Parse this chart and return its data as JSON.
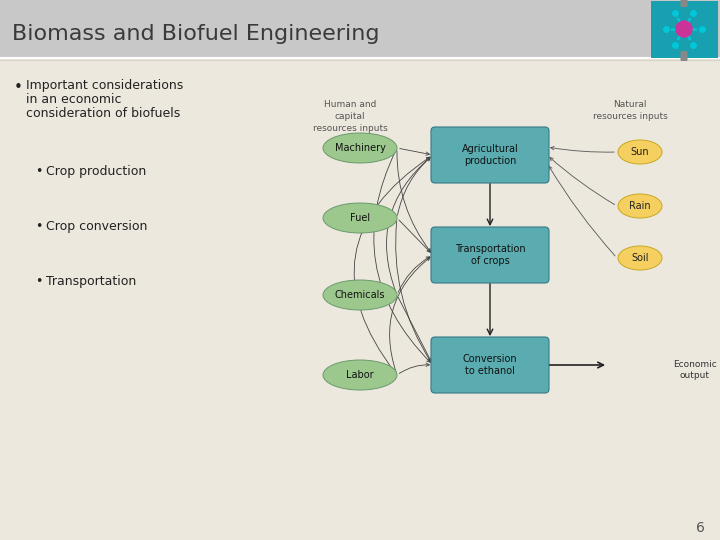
{
  "title": "Biomass and Biofuel Engineering",
  "title_bg": "#c8c8c8",
  "slide_bg": "#ece8de",
  "title_color": "#3a3a3a",
  "bullet1_line1": "Important considerations",
  "bullet1_line2": "in an economic",
  "bullet1_line3": "consideration of biofuels",
  "sub_bullets": [
    "Crop production",
    "Crop conversion",
    "Transportation"
  ],
  "green_ellipses": [
    "Machinery",
    "Fuel",
    "Chemicals",
    "Labor"
  ],
  "blue_boxes": [
    "Agricultural\nproduction",
    "Transportation\nof crops",
    "Conversion\nto ethanol"
  ],
  "yellow_ellipses": [
    "Sun",
    "Rain",
    "Soil"
  ],
  "label_left": "Human and\ncapital\nresources inputs",
  "label_right": "Natural\nresources inputs",
  "label_output": "Economic\noutput",
  "green_color": "#9dc88d",
  "blue_color": "#5aacb0",
  "yellow_color": "#f5d060",
  "page_number": "6",
  "title_font_size": 16,
  "body_font_size": 9,
  "diagram_font_size": 7
}
